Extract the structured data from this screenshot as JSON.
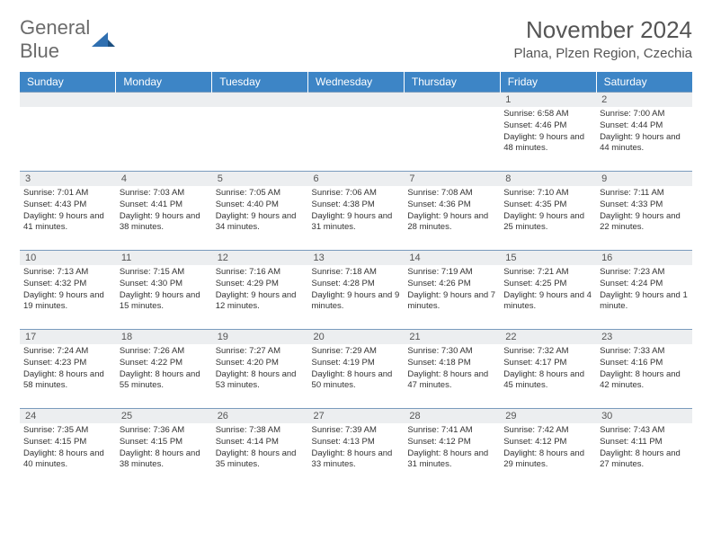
{
  "logo": {
    "word1": "General",
    "word2": "Blue"
  },
  "title": "November 2024",
  "location": "Plana, Plzen Region, Czechia",
  "colors": {
    "header_bg": "#3d85c6",
    "header_text": "#ffffff",
    "daynum_bg": "#eceef0",
    "border": "#7a9bbd",
    "logo_gray": "#6b6b6b",
    "logo_blue": "#2f6fb0"
  },
  "day_names": [
    "Sunday",
    "Monday",
    "Tuesday",
    "Wednesday",
    "Thursday",
    "Friday",
    "Saturday"
  ],
  "weeks": [
    [
      {
        "n": "",
        "sr": "",
        "ss": "",
        "dl": ""
      },
      {
        "n": "",
        "sr": "",
        "ss": "",
        "dl": ""
      },
      {
        "n": "",
        "sr": "",
        "ss": "",
        "dl": ""
      },
      {
        "n": "",
        "sr": "",
        "ss": "",
        "dl": ""
      },
      {
        "n": "",
        "sr": "",
        "ss": "",
        "dl": ""
      },
      {
        "n": "1",
        "sr": "Sunrise: 6:58 AM",
        "ss": "Sunset: 4:46 PM",
        "dl": "Daylight: 9 hours and 48 minutes."
      },
      {
        "n": "2",
        "sr": "Sunrise: 7:00 AM",
        "ss": "Sunset: 4:44 PM",
        "dl": "Daylight: 9 hours and 44 minutes."
      }
    ],
    [
      {
        "n": "3",
        "sr": "Sunrise: 7:01 AM",
        "ss": "Sunset: 4:43 PM",
        "dl": "Daylight: 9 hours and 41 minutes."
      },
      {
        "n": "4",
        "sr": "Sunrise: 7:03 AM",
        "ss": "Sunset: 4:41 PM",
        "dl": "Daylight: 9 hours and 38 minutes."
      },
      {
        "n": "5",
        "sr": "Sunrise: 7:05 AM",
        "ss": "Sunset: 4:40 PM",
        "dl": "Daylight: 9 hours and 34 minutes."
      },
      {
        "n": "6",
        "sr": "Sunrise: 7:06 AM",
        "ss": "Sunset: 4:38 PM",
        "dl": "Daylight: 9 hours and 31 minutes."
      },
      {
        "n": "7",
        "sr": "Sunrise: 7:08 AM",
        "ss": "Sunset: 4:36 PM",
        "dl": "Daylight: 9 hours and 28 minutes."
      },
      {
        "n": "8",
        "sr": "Sunrise: 7:10 AM",
        "ss": "Sunset: 4:35 PM",
        "dl": "Daylight: 9 hours and 25 minutes."
      },
      {
        "n": "9",
        "sr": "Sunrise: 7:11 AM",
        "ss": "Sunset: 4:33 PM",
        "dl": "Daylight: 9 hours and 22 minutes."
      }
    ],
    [
      {
        "n": "10",
        "sr": "Sunrise: 7:13 AM",
        "ss": "Sunset: 4:32 PM",
        "dl": "Daylight: 9 hours and 19 minutes."
      },
      {
        "n": "11",
        "sr": "Sunrise: 7:15 AM",
        "ss": "Sunset: 4:30 PM",
        "dl": "Daylight: 9 hours and 15 minutes."
      },
      {
        "n": "12",
        "sr": "Sunrise: 7:16 AM",
        "ss": "Sunset: 4:29 PM",
        "dl": "Daylight: 9 hours and 12 minutes."
      },
      {
        "n": "13",
        "sr": "Sunrise: 7:18 AM",
        "ss": "Sunset: 4:28 PM",
        "dl": "Daylight: 9 hours and 9 minutes."
      },
      {
        "n": "14",
        "sr": "Sunrise: 7:19 AM",
        "ss": "Sunset: 4:26 PM",
        "dl": "Daylight: 9 hours and 7 minutes."
      },
      {
        "n": "15",
        "sr": "Sunrise: 7:21 AM",
        "ss": "Sunset: 4:25 PM",
        "dl": "Daylight: 9 hours and 4 minutes."
      },
      {
        "n": "16",
        "sr": "Sunrise: 7:23 AM",
        "ss": "Sunset: 4:24 PM",
        "dl": "Daylight: 9 hours and 1 minute."
      }
    ],
    [
      {
        "n": "17",
        "sr": "Sunrise: 7:24 AM",
        "ss": "Sunset: 4:23 PM",
        "dl": "Daylight: 8 hours and 58 minutes."
      },
      {
        "n": "18",
        "sr": "Sunrise: 7:26 AM",
        "ss": "Sunset: 4:22 PM",
        "dl": "Daylight: 8 hours and 55 minutes."
      },
      {
        "n": "19",
        "sr": "Sunrise: 7:27 AM",
        "ss": "Sunset: 4:20 PM",
        "dl": "Daylight: 8 hours and 53 minutes."
      },
      {
        "n": "20",
        "sr": "Sunrise: 7:29 AM",
        "ss": "Sunset: 4:19 PM",
        "dl": "Daylight: 8 hours and 50 minutes."
      },
      {
        "n": "21",
        "sr": "Sunrise: 7:30 AM",
        "ss": "Sunset: 4:18 PM",
        "dl": "Daylight: 8 hours and 47 minutes."
      },
      {
        "n": "22",
        "sr": "Sunrise: 7:32 AM",
        "ss": "Sunset: 4:17 PM",
        "dl": "Daylight: 8 hours and 45 minutes."
      },
      {
        "n": "23",
        "sr": "Sunrise: 7:33 AM",
        "ss": "Sunset: 4:16 PM",
        "dl": "Daylight: 8 hours and 42 minutes."
      }
    ],
    [
      {
        "n": "24",
        "sr": "Sunrise: 7:35 AM",
        "ss": "Sunset: 4:15 PM",
        "dl": "Daylight: 8 hours and 40 minutes."
      },
      {
        "n": "25",
        "sr": "Sunrise: 7:36 AM",
        "ss": "Sunset: 4:15 PM",
        "dl": "Daylight: 8 hours and 38 minutes."
      },
      {
        "n": "26",
        "sr": "Sunrise: 7:38 AM",
        "ss": "Sunset: 4:14 PM",
        "dl": "Daylight: 8 hours and 35 minutes."
      },
      {
        "n": "27",
        "sr": "Sunrise: 7:39 AM",
        "ss": "Sunset: 4:13 PM",
        "dl": "Daylight: 8 hours and 33 minutes."
      },
      {
        "n": "28",
        "sr": "Sunrise: 7:41 AM",
        "ss": "Sunset: 4:12 PM",
        "dl": "Daylight: 8 hours and 31 minutes."
      },
      {
        "n": "29",
        "sr": "Sunrise: 7:42 AM",
        "ss": "Sunset: 4:12 PM",
        "dl": "Daylight: 8 hours and 29 minutes."
      },
      {
        "n": "30",
        "sr": "Sunrise: 7:43 AM",
        "ss": "Sunset: 4:11 PM",
        "dl": "Daylight: 8 hours and 27 minutes."
      }
    ]
  ]
}
